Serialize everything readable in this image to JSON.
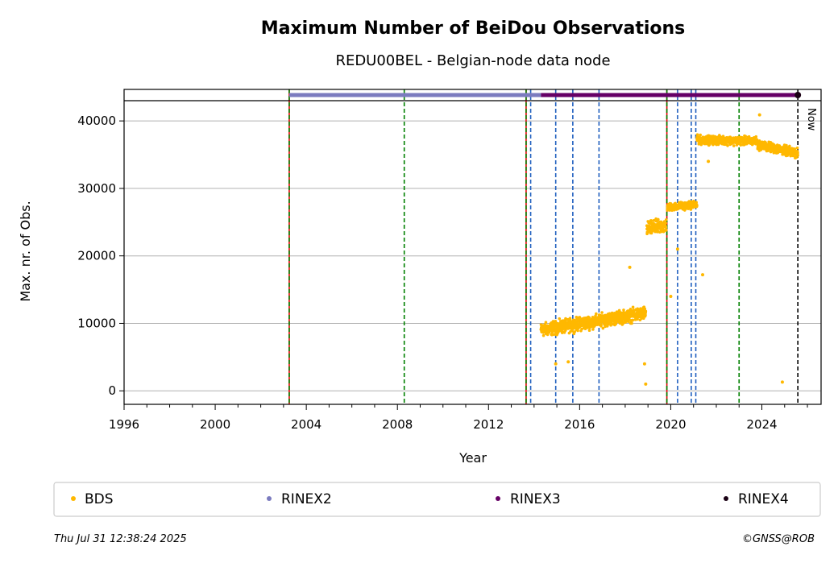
{
  "chart_data": {
    "type": "scatter",
    "title": "Maximum Number of BeiDou Observations",
    "subtitle": "REDU00BEL - Belgian-node data node",
    "xlabel": "Year",
    "ylabel": "Max. nr. of Obs.",
    "xlim": [
      1996,
      2026.6
    ],
    "ylim": [
      -2000,
      43000
    ],
    "x_ticks": [
      1996,
      2000,
      2004,
      2008,
      2012,
      2016,
      2020,
      2024
    ],
    "x_tick_labels": [
      "1996",
      "2000",
      "2004",
      "2008",
      "2012",
      "2016",
      "2020",
      "2024"
    ],
    "y_ticks": [
      0,
      10000,
      20000,
      30000,
      40000
    ],
    "y_tick_labels": [
      "0",
      "10000",
      "20000",
      "30000",
      "40000"
    ],
    "grid": "horizontal",
    "now_label": "Now",
    "now_year": 2025.58,
    "event_lines": {
      "red": [
        2003.25,
        2013.65,
        2019.83
      ],
      "green": [
        2003.25,
        2008.3,
        2013.65,
        2019.83,
        2023.0
      ],
      "blue": [
        2013.85,
        2014.95,
        2015.7,
        2016.85,
        2020.3,
        2020.9,
        2021.1
      ]
    },
    "format_bars": [
      {
        "name": "RINEX2",
        "start": 2003.25,
        "end": 2014.3,
        "color": "#7b7bbf"
      },
      {
        "name": "RINEX3",
        "start": 2014.3,
        "end": 2025.5,
        "color": "#660066"
      },
      {
        "name": "RINEX4",
        "start": 2025.5,
        "end": 2025.58,
        "color": "#1a0014"
      }
    ],
    "series": [
      {
        "name": "BDS",
        "color": "#ffb800",
        "segments": [
          {
            "x_start": 2014.3,
            "x_end": 2018.9,
            "y_start": 9000,
            "y_end": 11500,
            "spread": 1400
          },
          {
            "x_start": 2018.95,
            "x_end": 2019.8,
            "y_start": 24000,
            "y_end": 24500,
            "spread": 1500
          },
          {
            "x_start": 2019.85,
            "x_end": 2021.15,
            "y_start": 27200,
            "y_end": 27600,
            "spread": 800
          },
          {
            "x_start": 2021.15,
            "x_end": 2023.8,
            "y_start": 37200,
            "y_end": 37000,
            "spread": 900
          },
          {
            "x_start": 2023.8,
            "x_end": 2025.58,
            "y_start": 36500,
            "y_end": 35200,
            "spread": 1000
          }
        ],
        "outliers": [
          {
            "x": 2014.95,
            "y": 4000
          },
          {
            "x": 2015.5,
            "y": 4300
          },
          {
            "x": 2018.2,
            "y": 18300
          },
          {
            "x": 2018.9,
            "y": 1000
          },
          {
            "x": 2018.85,
            "y": 4000
          },
          {
            "x": 2020.0,
            "y": 14000
          },
          {
            "x": 2020.3,
            "y": 21000
          },
          {
            "x": 2021.4,
            "y": 17200
          },
          {
            "x": 2021.65,
            "y": 34000
          },
          {
            "x": 2024.9,
            "y": 1300
          },
          {
            "x": 2023.9,
            "y": 40900
          }
        ]
      }
    ],
    "legend": {
      "placement": "bottom",
      "entries": [
        {
          "name": "BDS",
          "color": "#ffb800"
        },
        {
          "name": "RINEX2",
          "color": "#7b7bbf"
        },
        {
          "name": "RINEX3",
          "color": "#660066"
        },
        {
          "name": "RINEX4",
          "color": "#1a0014"
        }
      ]
    }
  },
  "footer": {
    "timestamp": "Thu Jul 31 12:38:24 2025",
    "credit": "©GNSS@ROB"
  }
}
